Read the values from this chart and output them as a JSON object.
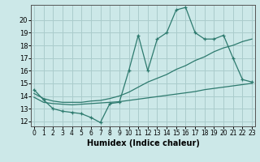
{
  "xlabel": "Humidex (Indice chaleur)",
  "bg_color": "#cce8e8",
  "grid_color": "#aacccc",
  "line_color": "#2d7a6e",
  "x_ticks": [
    0,
    1,
    2,
    3,
    4,
    5,
    6,
    7,
    8,
    9,
    10,
    11,
    12,
    13,
    14,
    15,
    16,
    17,
    18,
    19,
    20,
    21,
    22,
    23
  ],
  "y_ticks": [
    12,
    13,
    14,
    15,
    16,
    17,
    18,
    19,
    20
  ],
  "ylim": [
    11.6,
    21.2
  ],
  "xlim": [
    -0.3,
    23.3
  ],
  "curve1_x": [
    0,
    1,
    2,
    3,
    4,
    5,
    6,
    7,
    8,
    9,
    10,
    11,
    12,
    13,
    14,
    15,
    16,
    17,
    18,
    19,
    20,
    21,
    22,
    23
  ],
  "curve1_y": [
    14.5,
    13.7,
    13.0,
    12.8,
    12.7,
    12.6,
    12.3,
    11.9,
    13.4,
    13.5,
    16.0,
    18.8,
    16.0,
    18.5,
    19.0,
    20.8,
    21.0,
    19.0,
    18.5,
    18.5,
    18.8,
    17.0,
    15.3,
    15.1
  ],
  "curve2_x": [
    0,
    1,
    2,
    3,
    4,
    5,
    6,
    7,
    8,
    9,
    10,
    11,
    12,
    13,
    14,
    15,
    16,
    17,
    18,
    19,
    20,
    21,
    22,
    23
  ],
  "curve2_y": [
    13.9,
    13.5,
    13.4,
    13.35,
    13.3,
    13.35,
    13.4,
    13.45,
    13.5,
    13.55,
    13.65,
    13.75,
    13.85,
    13.95,
    14.05,
    14.15,
    14.25,
    14.35,
    14.5,
    14.6,
    14.7,
    14.8,
    14.9,
    15.0
  ],
  "curve3_x": [
    0,
    1,
    2,
    3,
    4,
    5,
    6,
    7,
    8,
    9,
    10,
    11,
    12,
    13,
    14,
    15,
    16,
    17,
    18,
    19,
    20,
    21,
    22,
    23
  ],
  "curve3_y": [
    14.2,
    13.8,
    13.6,
    13.5,
    13.5,
    13.5,
    13.6,
    13.65,
    13.8,
    14.0,
    14.3,
    14.7,
    15.1,
    15.4,
    15.7,
    16.1,
    16.4,
    16.8,
    17.1,
    17.5,
    17.8,
    18.0,
    18.3,
    18.5
  ]
}
